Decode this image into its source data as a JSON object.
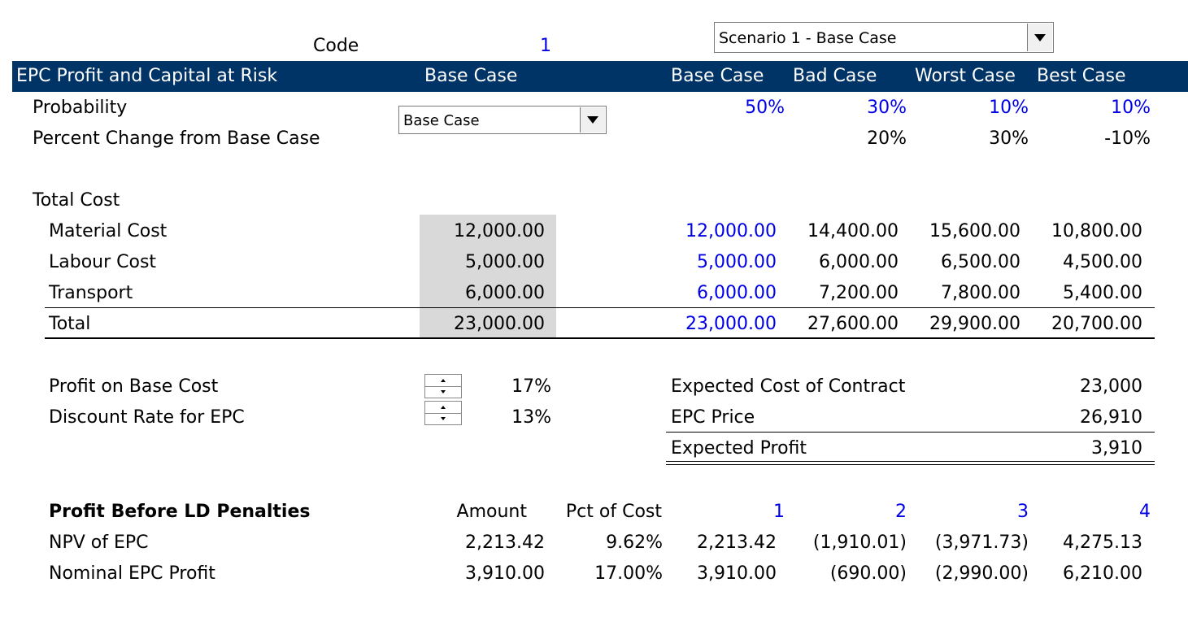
{
  "code": {
    "label": "Code",
    "value": "1"
  },
  "scenario_dropdown": {
    "value": "Scenario 1 - Base Case"
  },
  "header": {
    "title": "EPC Profit and Capital at Risk",
    "col_selected": "Base Case",
    "scenarios": [
      "Base Case",
      "Bad Case",
      "Worst Case",
      "Best Case"
    ]
  },
  "probability": {
    "label": "Probability",
    "values": [
      "50%",
      "30%",
      "10%",
      "10%"
    ]
  },
  "case_dropdown": {
    "value": "Base Case"
  },
  "pct_change": {
    "label": "Percent Change from Base Case",
    "values": [
      "20%",
      "30%",
      "-10%"
    ]
  },
  "total_cost": {
    "label": "Total Cost",
    "rows": [
      {
        "label": "Material Cost",
        "selected": "12,000.00",
        "values": [
          "12,000.00",
          "14,400.00",
          "15,600.00",
          "10,800.00"
        ]
      },
      {
        "label": "Labour Cost",
        "selected": "5,000.00",
        "values": [
          "5,000.00",
          "6,000.00",
          "6,500.00",
          "4,500.00"
        ]
      },
      {
        "label": "Transport",
        "selected": "6,000.00",
        "values": [
          "6,000.00",
          "7,200.00",
          "7,800.00",
          "5,400.00"
        ]
      }
    ],
    "total": {
      "label": "Total",
      "selected": "23,000.00",
      "values": [
        "23,000.00",
        "27,600.00",
        "29,900.00",
        "20,700.00"
      ]
    }
  },
  "inputs": {
    "profit_on_base": {
      "label": "Profit on Base Cost",
      "value": "17%"
    },
    "discount_rate": {
      "label": "Discount Rate for EPC",
      "value": "13%"
    }
  },
  "summary": {
    "expected_cost": {
      "label": "Expected Cost of Contract",
      "value": "23,000"
    },
    "epc_price": {
      "label": "EPC Price",
      "value": "26,910"
    },
    "expected_profit": {
      "label": "Expected Profit",
      "value": "3,910"
    }
  },
  "profit_table": {
    "title": "Profit Before LD Penalties",
    "col_amount": "Amount",
    "col_pct": "Pct of Cost",
    "scenario_nums": [
      "1",
      "2",
      "3",
      "4"
    ],
    "rows": [
      {
        "label": "NPV of EPC",
        "amount": "2,213.42",
        "pct": "9.62%",
        "values": [
          "2,213.42",
          "(1,910.01)",
          "(3,971.73)",
          "4,275.13"
        ]
      },
      {
        "label": "Nominal EPC Profit",
        "amount": "3,910.00",
        "pct": "17.00%",
        "values": [
          "3,910.00",
          "(690.00)",
          "(2,990.00)",
          "6,210.00"
        ]
      }
    ]
  },
  "colors": {
    "header_bg": "#003366",
    "input_blue": "#0000e6",
    "shaded_cell": "#d9d9d9"
  }
}
